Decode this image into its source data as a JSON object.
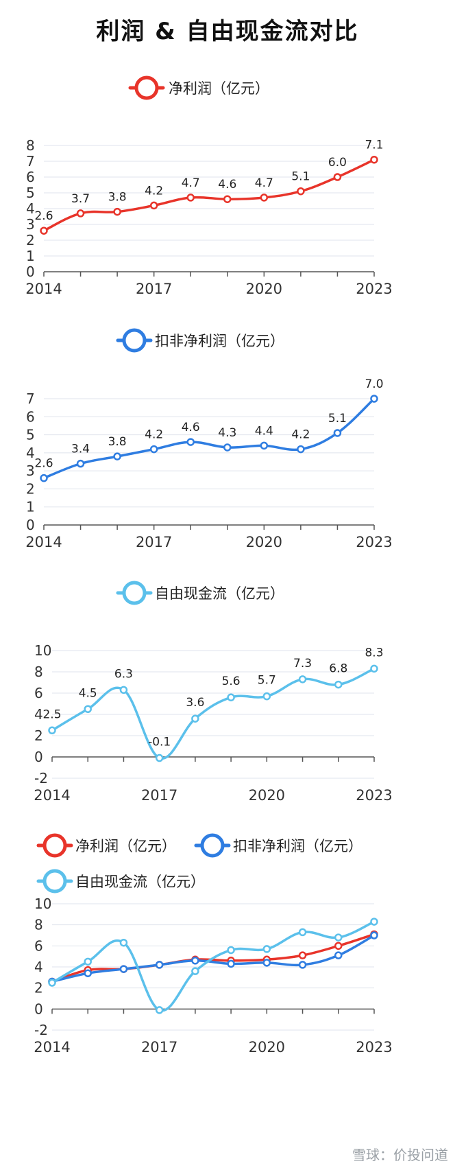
{
  "title": "利润 & 自由现金流对比",
  "watermark": "雪球：价投问道",
  "colors": {
    "net_profit": "#e8342a",
    "deducted_profit": "#2f7de1",
    "free_cash_flow": "#5bc0eb",
    "grid": "#dfe3ec",
    "axis": "#555555"
  },
  "chart_data": [
    {
      "type": "line",
      "legend": [
        "净利润（亿元）"
      ],
      "x": [
        "2014",
        "2015",
        "2016",
        "2017",
        "2018",
        "2019",
        "2020",
        "2021",
        "2022",
        "2023"
      ],
      "x_tick_labels": [
        "2014",
        "2017",
        "2020",
        "2023"
      ],
      "y_ticks": [
        0,
        1,
        2,
        3,
        4,
        5,
        6,
        7,
        8
      ],
      "ylim": [
        0,
        8
      ],
      "grid": true,
      "series": [
        {
          "name": "净利润（亿元）",
          "color": "#e8342a",
          "values": [
            2.6,
            3.7,
            3.8,
            4.2,
            4.7,
            4.6,
            4.7,
            5.1,
            6.0,
            7.1
          ],
          "labels": [
            "2.6",
            "3.7",
            "3.8",
            "4.2",
            "4.7",
            "4.6",
            "4.7",
            "5.1",
            "6.0",
            "7.1"
          ]
        }
      ]
    },
    {
      "type": "line",
      "legend": [
        "扣非净利润（亿元）"
      ],
      "x": [
        "2014",
        "2015",
        "2016",
        "2017",
        "2018",
        "2019",
        "2020",
        "2021",
        "2022",
        "2023"
      ],
      "x_tick_labels": [
        "2014",
        "2017",
        "2020",
        "2023"
      ],
      "y_ticks": [
        0,
        1,
        2,
        3,
        4,
        5,
        6,
        7
      ],
      "ylim": [
        0,
        7
      ],
      "grid": true,
      "series": [
        {
          "name": "扣非净利润（亿元）",
          "color": "#2f7de1",
          "values": [
            2.6,
            3.4,
            3.8,
            4.2,
            4.6,
            4.3,
            4.4,
            4.2,
            5.1,
            7.0
          ],
          "labels": [
            "2.6",
            "3.4",
            "3.8",
            "4.2",
            "4.6",
            "4.3",
            "4.4",
            "4.2",
            "5.1",
            "7.0"
          ]
        }
      ]
    },
    {
      "type": "line",
      "legend": [
        "自由现金流（亿元）"
      ],
      "x": [
        "2014",
        "2015",
        "2016",
        "2017",
        "2018",
        "2019",
        "2020",
        "2021",
        "2022",
        "2023"
      ],
      "x_tick_labels": [
        "2014",
        "2017",
        "2020",
        "2023"
      ],
      "y_ticks": [
        -2,
        0,
        2,
        4,
        6,
        8,
        10
      ],
      "ylim": [
        -2,
        10
      ],
      "grid": true,
      "series": [
        {
          "name": "自由现金流（亿元）",
          "color": "#5bc0eb",
          "values": [
            2.5,
            4.5,
            6.3,
            -0.1,
            3.6,
            5.6,
            5.7,
            7.3,
            6.8,
            8.3
          ],
          "labels": [
            "2.5",
            "4.5",
            "6.3",
            "-0.1",
            "3.6",
            "5.6",
            "5.7",
            "7.3",
            "6.8",
            "8.3"
          ]
        }
      ]
    },
    {
      "type": "line",
      "legend": [
        "净利润（亿元）",
        "扣非净利润（亿元）",
        "自由现金流（亿元）"
      ],
      "x": [
        "2014",
        "2015",
        "2016",
        "2017",
        "2018",
        "2019",
        "2020",
        "2021",
        "2022",
        "2023"
      ],
      "x_tick_labels": [
        "2014",
        "2017",
        "2020",
        "2023"
      ],
      "y_ticks": [
        -2,
        0,
        2,
        4,
        6,
        8,
        10
      ],
      "ylim": [
        -2,
        10
      ],
      "grid": true,
      "series": [
        {
          "name": "净利润（亿元）",
          "color": "#e8342a",
          "values": [
            2.6,
            3.7,
            3.8,
            4.2,
            4.7,
            4.6,
            4.7,
            5.1,
            6.0,
            7.1
          ]
        },
        {
          "name": "扣非净利润（亿元）",
          "color": "#2f7de1",
          "values": [
            2.6,
            3.4,
            3.8,
            4.2,
            4.6,
            4.3,
            4.4,
            4.2,
            5.1,
            7.0
          ]
        },
        {
          "name": "自由现金流（亿元）",
          "color": "#5bc0eb",
          "values": [
            2.5,
            4.5,
            6.3,
            -0.1,
            3.6,
            5.6,
            5.7,
            7.3,
            6.8,
            8.3
          ]
        }
      ]
    }
  ]
}
